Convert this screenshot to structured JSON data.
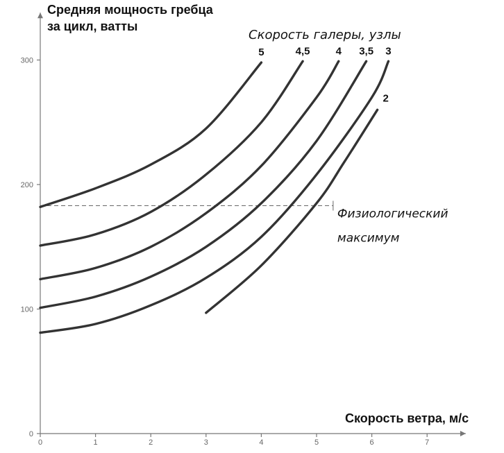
{
  "chart_data": {
    "type": "line",
    "ylabel_lines": [
      "Средняя мощность гребца",
      "за цикл, ватты"
    ],
    "xlabel": "Скорость ветра, м/с",
    "legend_title": "Скорость галеры, узлы",
    "xlim": [
      0,
      7.2
    ],
    "ylim": [
      0,
      310
    ],
    "x_ticks": [
      "0",
      "1",
      "2",
      "3",
      "4",
      "5",
      "6",
      "7"
    ],
    "y_ticks": [
      "0",
      "100",
      "200",
      "300"
    ],
    "series": [
      {
        "name": "5",
        "points": [
          [
            0,
            182
          ],
          [
            1,
            197
          ],
          [
            2,
            216
          ],
          [
            3,
            245
          ],
          [
            4,
            298
          ]
        ]
      },
      {
        "name": "4,5",
        "points": [
          [
            0,
            151
          ],
          [
            1,
            160
          ],
          [
            2,
            178
          ],
          [
            3,
            208
          ],
          [
            4,
            250
          ],
          [
            4.75,
            299
          ]
        ]
      },
      {
        "name": "4",
        "points": [
          [
            0,
            124
          ],
          [
            1,
            133
          ],
          [
            2,
            150
          ],
          [
            3,
            177
          ],
          [
            4,
            215
          ],
          [
            5,
            270
          ],
          [
            5.4,
            299
          ]
        ]
      },
      {
        "name": "3,5",
        "points": [
          [
            0,
            101
          ],
          [
            1,
            110
          ],
          [
            2,
            126
          ],
          [
            3,
            150
          ],
          [
            4,
            185
          ],
          [
            5,
            235
          ],
          [
            5.9,
            299
          ]
        ]
      },
      {
        "name": "3",
        "points": [
          [
            0,
            81
          ],
          [
            1,
            88
          ],
          [
            2,
            103
          ],
          [
            3,
            125
          ],
          [
            4,
            158
          ],
          [
            5,
            208
          ],
          [
            6,
            270
          ],
          [
            6.3,
            299
          ]
        ]
      },
      {
        "name": "2",
        "points": [
          [
            3,
            97
          ],
          [
            4,
            135
          ],
          [
            5,
            185
          ],
          [
            5.5,
            218
          ],
          [
            6.1,
            260
          ]
        ]
      }
    ],
    "threshold": {
      "label_lines": [
        "Физиологический",
        "максимум"
      ],
      "y": 183,
      "x_end": 5.3
    }
  }
}
